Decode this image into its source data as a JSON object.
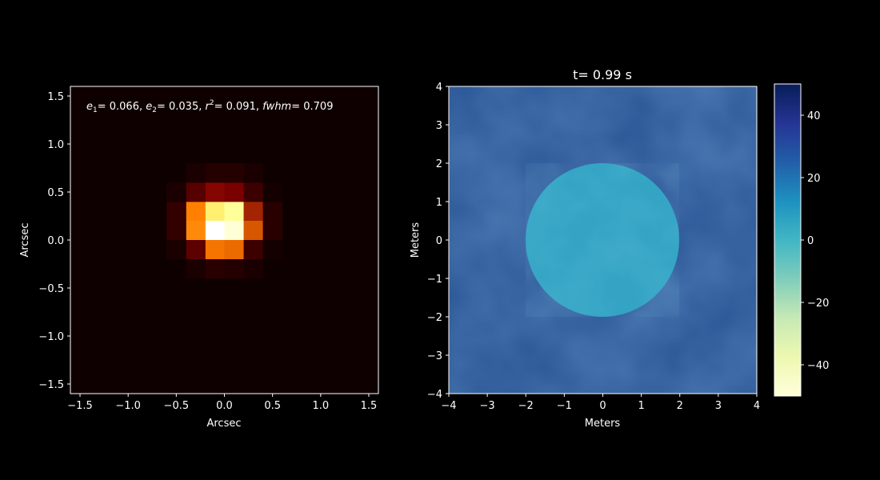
{
  "chart_data": [
    {
      "type": "heatmap",
      "title": "",
      "xlabel": "Arcsec",
      "ylabel": "Arcsec",
      "xlim": [
        -1.6,
        1.6
      ],
      "ylim": [
        -1.6,
        1.6
      ],
      "xticks": [
        -1.5,
        -1.0,
        -0.5,
        0.0,
        0.5,
        1.0,
        1.5
      ],
      "xtick_labels": [
        "−1.5",
        "−1.0",
        "−0.5",
        "0.0",
        "0.5",
        "1.0",
        "1.5"
      ],
      "yticks": [
        -1.5,
        -1.0,
        -0.5,
        0.0,
        0.5,
        1.0,
        1.5
      ],
      "ytick_labels": [
        "−1.5",
        "−1.0",
        "−0.5",
        "0.0",
        "0.5",
        "1.0",
        "1.5"
      ],
      "colormap": "afmhot",
      "pixel_size": 0.2,
      "grid_x0": -1.6,
      "grid_y0": -1.6,
      "grid_n": 16,
      "background_value": 0.0,
      "pixels": [
        {
          "col": 7,
          "row": 9,
          "value": 0.72
        },
        {
          "col": 8,
          "row": 9,
          "value": 0.8
        },
        {
          "col": 7,
          "row": 8,
          "value": 1.0
        },
        {
          "col": 8,
          "row": 8,
          "value": 0.92
        },
        {
          "col": 6,
          "row": 9,
          "value": 0.5
        },
        {
          "col": 9,
          "row": 9,
          "value": 0.32
        },
        {
          "col": 6,
          "row": 8,
          "value": 0.52
        },
        {
          "col": 9,
          "row": 8,
          "value": 0.42
        },
        {
          "col": 7,
          "row": 10,
          "value": 0.26
        },
        {
          "col": 8,
          "row": 10,
          "value": 0.24
        },
        {
          "col": 7,
          "row": 7,
          "value": 0.48
        },
        {
          "col": 8,
          "row": 7,
          "value": 0.46
        },
        {
          "col": 6,
          "row": 10,
          "value": 0.17
        },
        {
          "col": 9,
          "row": 10,
          "value": 0.12
        },
        {
          "col": 6,
          "row": 7,
          "value": 0.18
        },
        {
          "col": 9,
          "row": 7,
          "value": 0.12
        },
        {
          "col": 5,
          "row": 9,
          "value": 0.1
        },
        {
          "col": 5,
          "row": 8,
          "value": 0.1
        },
        {
          "col": 10,
          "row": 9,
          "value": 0.08
        },
        {
          "col": 10,
          "row": 8,
          "value": 0.08
        },
        {
          "col": 7,
          "row": 11,
          "value": 0.07
        },
        {
          "col": 8,
          "row": 11,
          "value": 0.07
        },
        {
          "col": 7,
          "row": 6,
          "value": 0.08
        },
        {
          "col": 8,
          "row": 6,
          "value": 0.07
        },
        {
          "col": 6,
          "row": 11,
          "value": 0.05
        },
        {
          "col": 9,
          "row": 11,
          "value": 0.05
        },
        {
          "col": 6,
          "row": 6,
          "value": 0.05
        },
        {
          "col": 9,
          "row": 6,
          "value": 0.05
        },
        {
          "col": 5,
          "row": 10,
          "value": 0.05
        },
        {
          "col": 10,
          "row": 10,
          "value": 0.04
        },
        {
          "col": 5,
          "row": 7,
          "value": 0.05
        },
        {
          "col": 10,
          "row": 7,
          "value": 0.04
        }
      ],
      "annotation": {
        "e1_label": "e",
        "e1_sub": "1",
        "e1_value": "= 0.066, ",
        "e2_label": "e",
        "e2_sub": "2",
        "e2_value": "= 0.035, ",
        "r2_label": "r",
        "r2_sup": "2",
        "r2_value": "= 0.091, ",
        "fwhm_label": "fwhm",
        "fwhm_value": "= 0.709"
      }
    },
    {
      "type": "heatmap",
      "title": "t= 0.99 s",
      "xlabel": "Meters",
      "ylabel": "Meters",
      "xlim": [
        -4,
        4
      ],
      "ylim": [
        -4,
        4
      ],
      "xticks": [
        -4,
        -3,
        -2,
        -1,
        0,
        1,
        2,
        3,
        4
      ],
      "xtick_labels": [
        "−4",
        "−3",
        "−2",
        "−1",
        "0",
        "1",
        "2",
        "3",
        "4"
      ],
      "yticks": [
        -4,
        -3,
        -2,
        -1,
        0,
        1,
        2,
        3,
        4
      ],
      "ytick_labels": [
        "−4",
        "−3",
        "−2",
        "−1",
        "0",
        "1",
        "2",
        "3",
        "4"
      ],
      "colormap": "YlGnBu",
      "aperture": {
        "center": [
          0,
          0
        ],
        "radius": 2.0,
        "mean_value": 6
      },
      "background_mean_value": 26,
      "colorbar": {
        "vmin": -50,
        "vmax": 50,
        "ticks": [
          40,
          20,
          0,
          -20,
          -40
        ],
        "tick_labels": [
          "40",
          "20",
          "0",
          "−20",
          "−40"
        ]
      }
    }
  ]
}
